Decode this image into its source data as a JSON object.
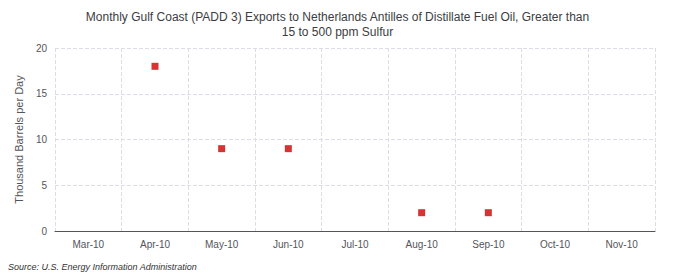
{
  "chart_data": {
    "type": "scatter",
    "title": "Monthly Gulf Coast (PADD 3) Exports to Netherlands Antilles of Distillate Fuel Oil, Greater than\n15 to 500 ppm Sulfur",
    "y_label": "Thousand Barrels per Day",
    "source": "Source: U.S. Energy Information Administration",
    "categories": [
      "Mar-10",
      "Apr-10",
      "May-10",
      "Jun-10",
      "Jul-10",
      "Aug-10",
      "Sep-10",
      "Oct-10",
      "Nov-10"
    ],
    "values": [
      null,
      18.0,
      9.0,
      9.0,
      null,
      2.0,
      2.0,
      null,
      null
    ],
    "color": "#CC0000",
    "marker": "square",
    "ylim": [
      0,
      20
    ],
    "yticks": [
      0,
      5,
      10,
      15,
      20
    ],
    "grid": true
  }
}
